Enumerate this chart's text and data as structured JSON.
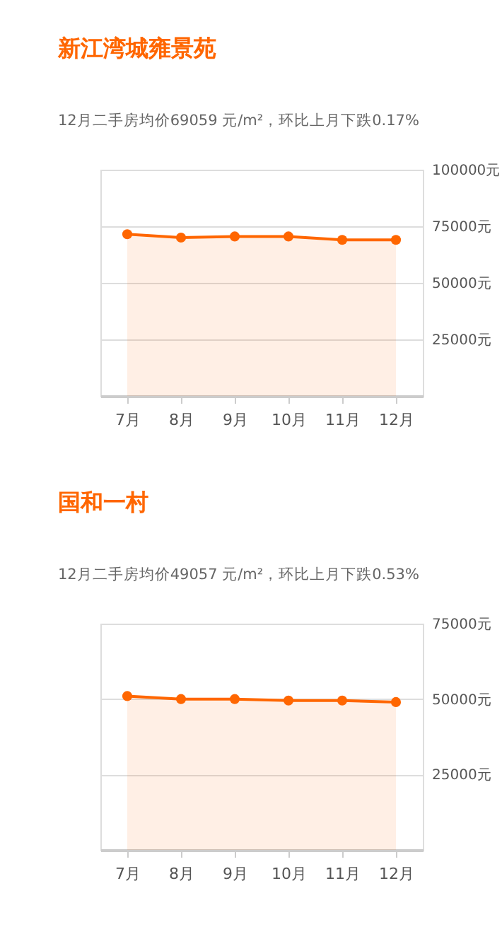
{
  "chart_data": [
    {
      "type": "area",
      "title": "新江湾城雍景苑",
      "subtitle": "12月二手房均价69059 元/m²，环比上月下跌0.17%",
      "categories": [
        "7月",
        "8月",
        "9月",
        "10月",
        "11月",
        "12月"
      ],
      "series": [
        {
          "color": "#ff6600",
          "values": [
            71500,
            70000,
            70500,
            70500,
            69000,
            69000
          ]
        }
      ],
      "ylim": [
        0,
        100000
      ],
      "yticks": [
        {
          "value": 25000,
          "label": "25000元"
        },
        {
          "value": 50000,
          "label": "50000元"
        },
        {
          "value": 75000,
          "label": "75000元"
        },
        {
          "value": 100000,
          "label": "100000元"
        }
      ],
      "grid": "y",
      "marker": "circle",
      "line_style": "solid"
    },
    {
      "type": "area",
      "title": "国和一村",
      "subtitle": "12月二手房均价49057 元/m²，环比上月下跌0.53%",
      "categories": [
        "7月",
        "8月",
        "9月",
        "10月",
        "11月",
        "12月"
      ],
      "series": [
        {
          "color": "#ff6600",
          "values": [
            51000,
            50000,
            50000,
            49500,
            49500,
            49000
          ]
        }
      ],
      "ylim": [
        0,
        75000
      ],
      "yticks": [
        {
          "value": 25000,
          "label": "25000元"
        },
        {
          "value": 50000,
          "label": "50000元"
        },
        {
          "value": 75000,
          "label": "75000元"
        }
      ],
      "grid": "y",
      "marker": "circle",
      "line_style": "solid"
    }
  ]
}
